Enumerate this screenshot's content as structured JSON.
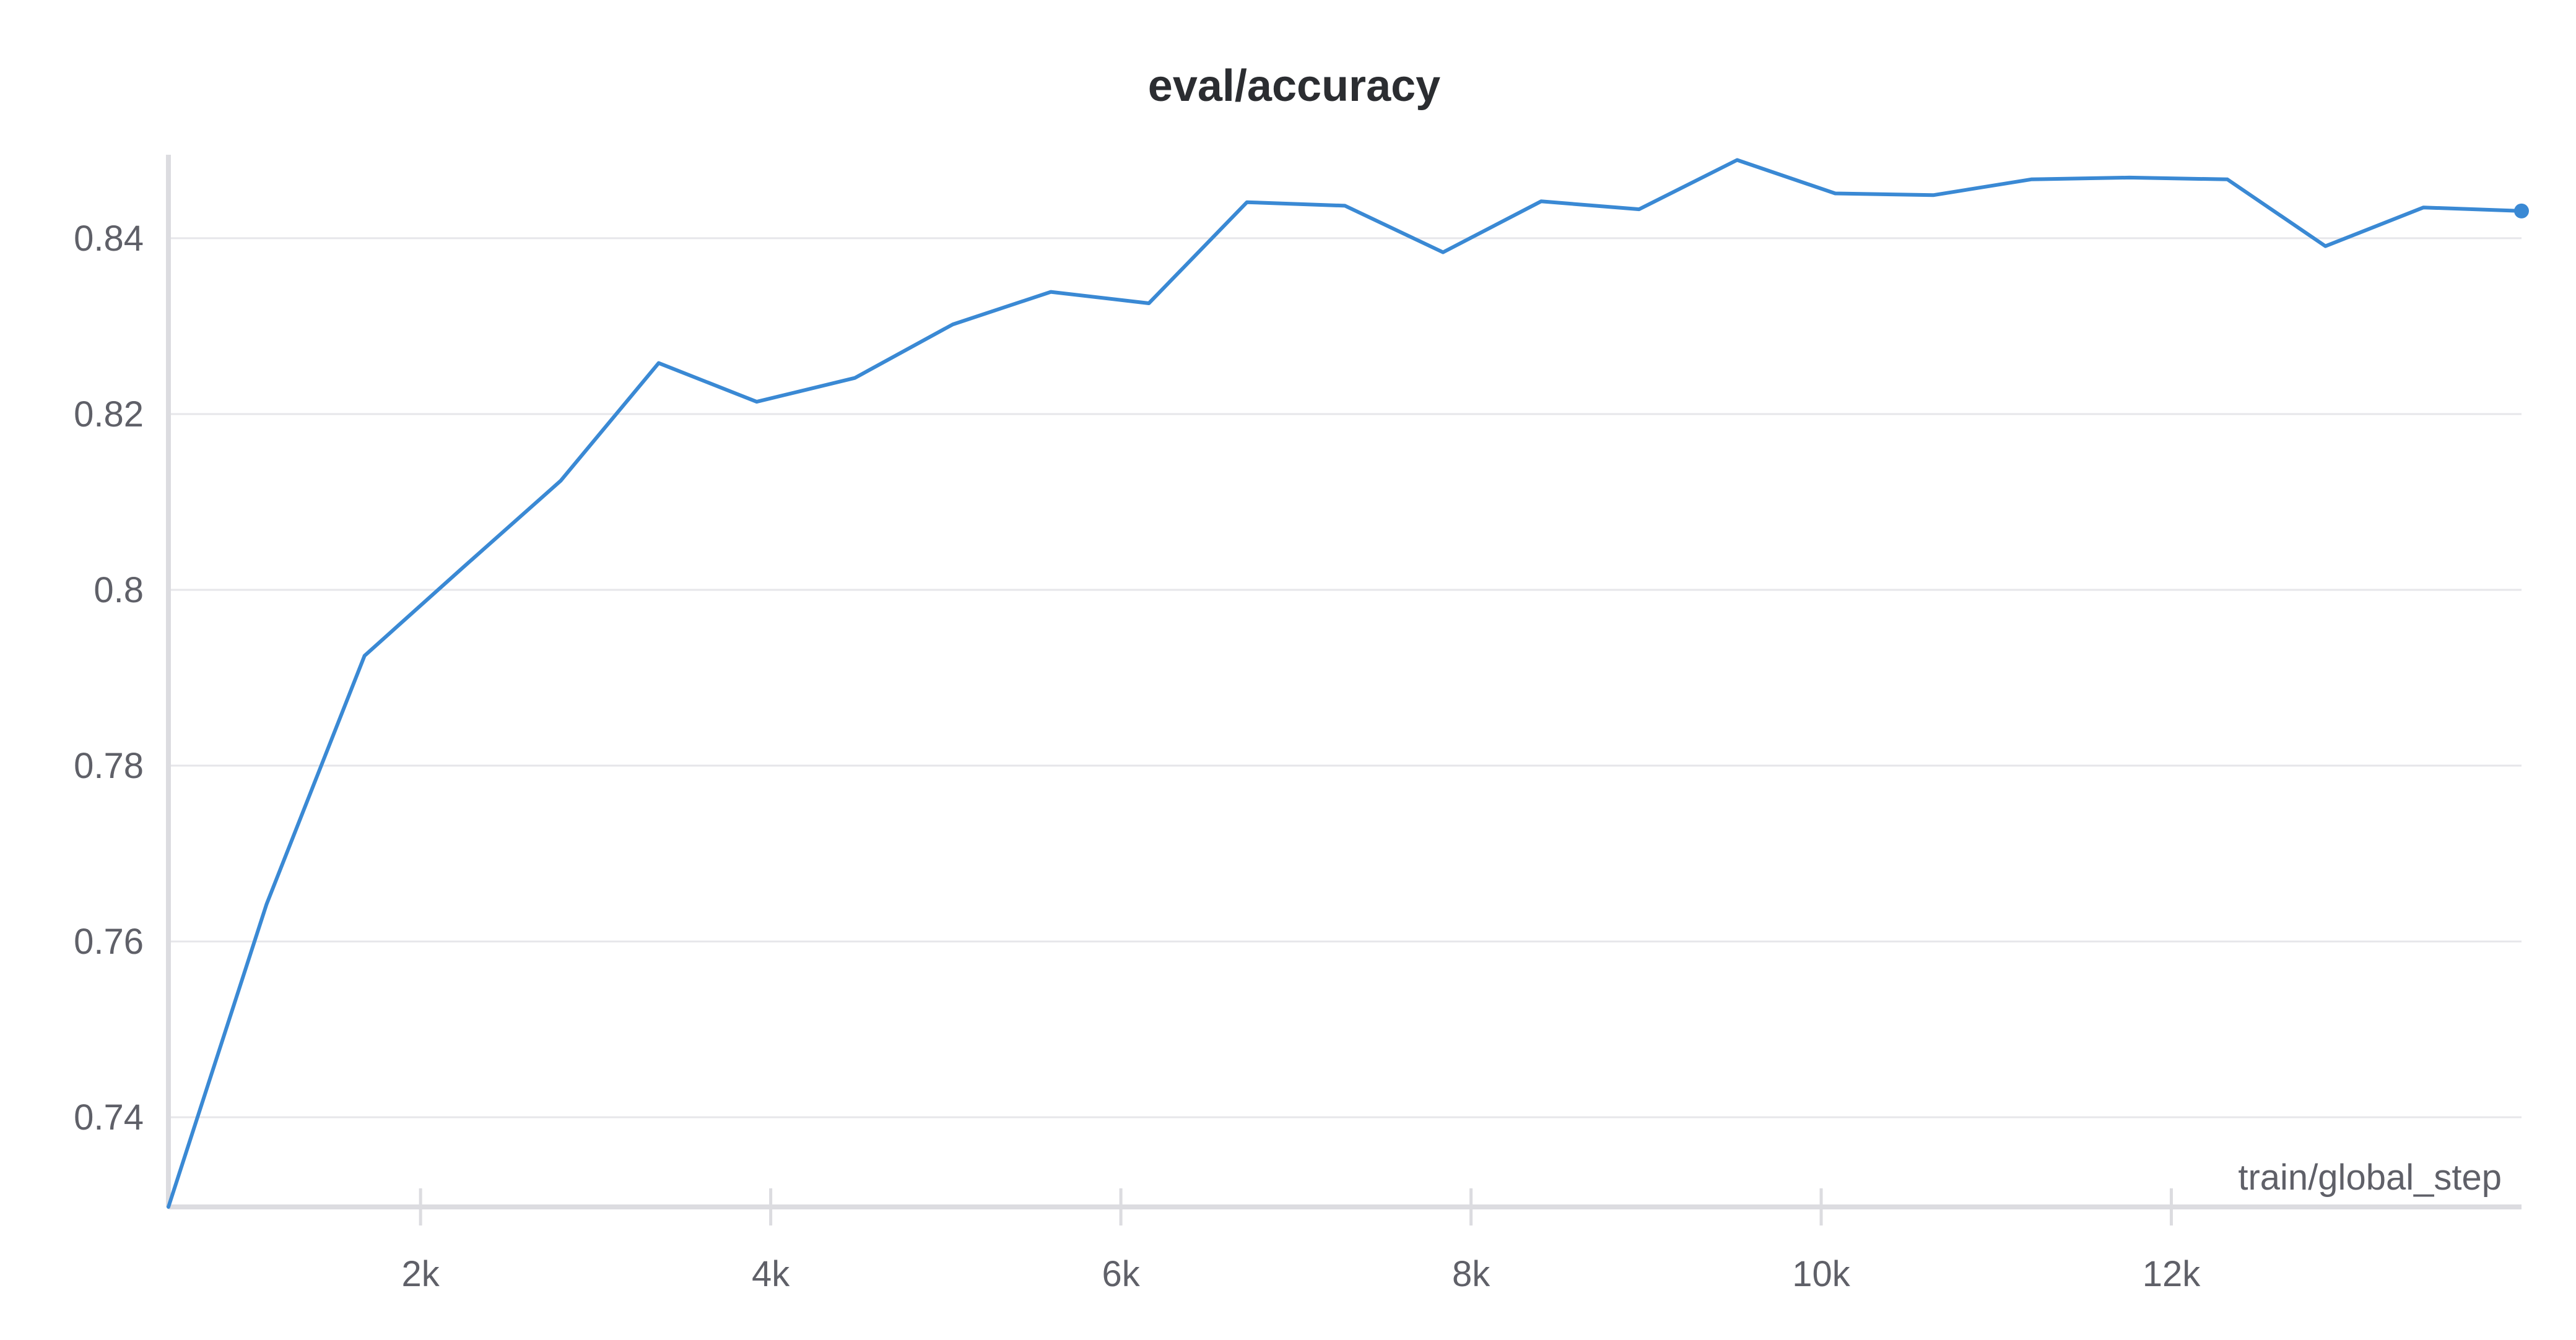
{
  "chart_data": {
    "type": "line",
    "title": "eval/accuracy",
    "xlabel": "train/global_step",
    "ylabel": "",
    "xlim": [
      560,
      14000
    ],
    "ylim": [
      0.7298,
      0.8495
    ],
    "xticks": [
      2000,
      4000,
      6000,
      8000,
      10000,
      12000
    ],
    "xtick_labels": [
      "2k",
      "4k",
      "6k",
      "8k",
      "10k",
      "12k"
    ],
    "yticks": [
      0.74,
      0.76,
      0.78,
      0.8,
      0.82,
      0.84
    ],
    "ytick_labels": [
      "0.74",
      "0.76",
      "0.78",
      "0.8",
      "0.82",
      "0.84"
    ],
    "grid": true,
    "colors": {
      "series": "#3a89d4"
    },
    "series": [
      {
        "x": [
          560,
          1120,
          1680,
          2240,
          2800,
          3360,
          3920,
          4480,
          5040,
          5600,
          6160,
          6720,
          7280,
          7840,
          8400,
          8960,
          9520,
          10080,
          10640,
          11200,
          11760,
          12320,
          12880,
          13440,
          14000
        ],
        "values": [
          0.7298,
          0.7642,
          0.7925,
          0.8025,
          0.8124,
          0.8258,
          0.8214,
          0.8241,
          0.8302,
          0.8339,
          0.8326,
          0.8441,
          0.8437,
          0.8384,
          0.8442,
          0.8433,
          0.8489,
          0.8451,
          0.8449,
          0.8467,
          0.8469,
          0.8467,
          0.8391,
          0.8435,
          0.8431
        ]
      }
    ]
  }
}
